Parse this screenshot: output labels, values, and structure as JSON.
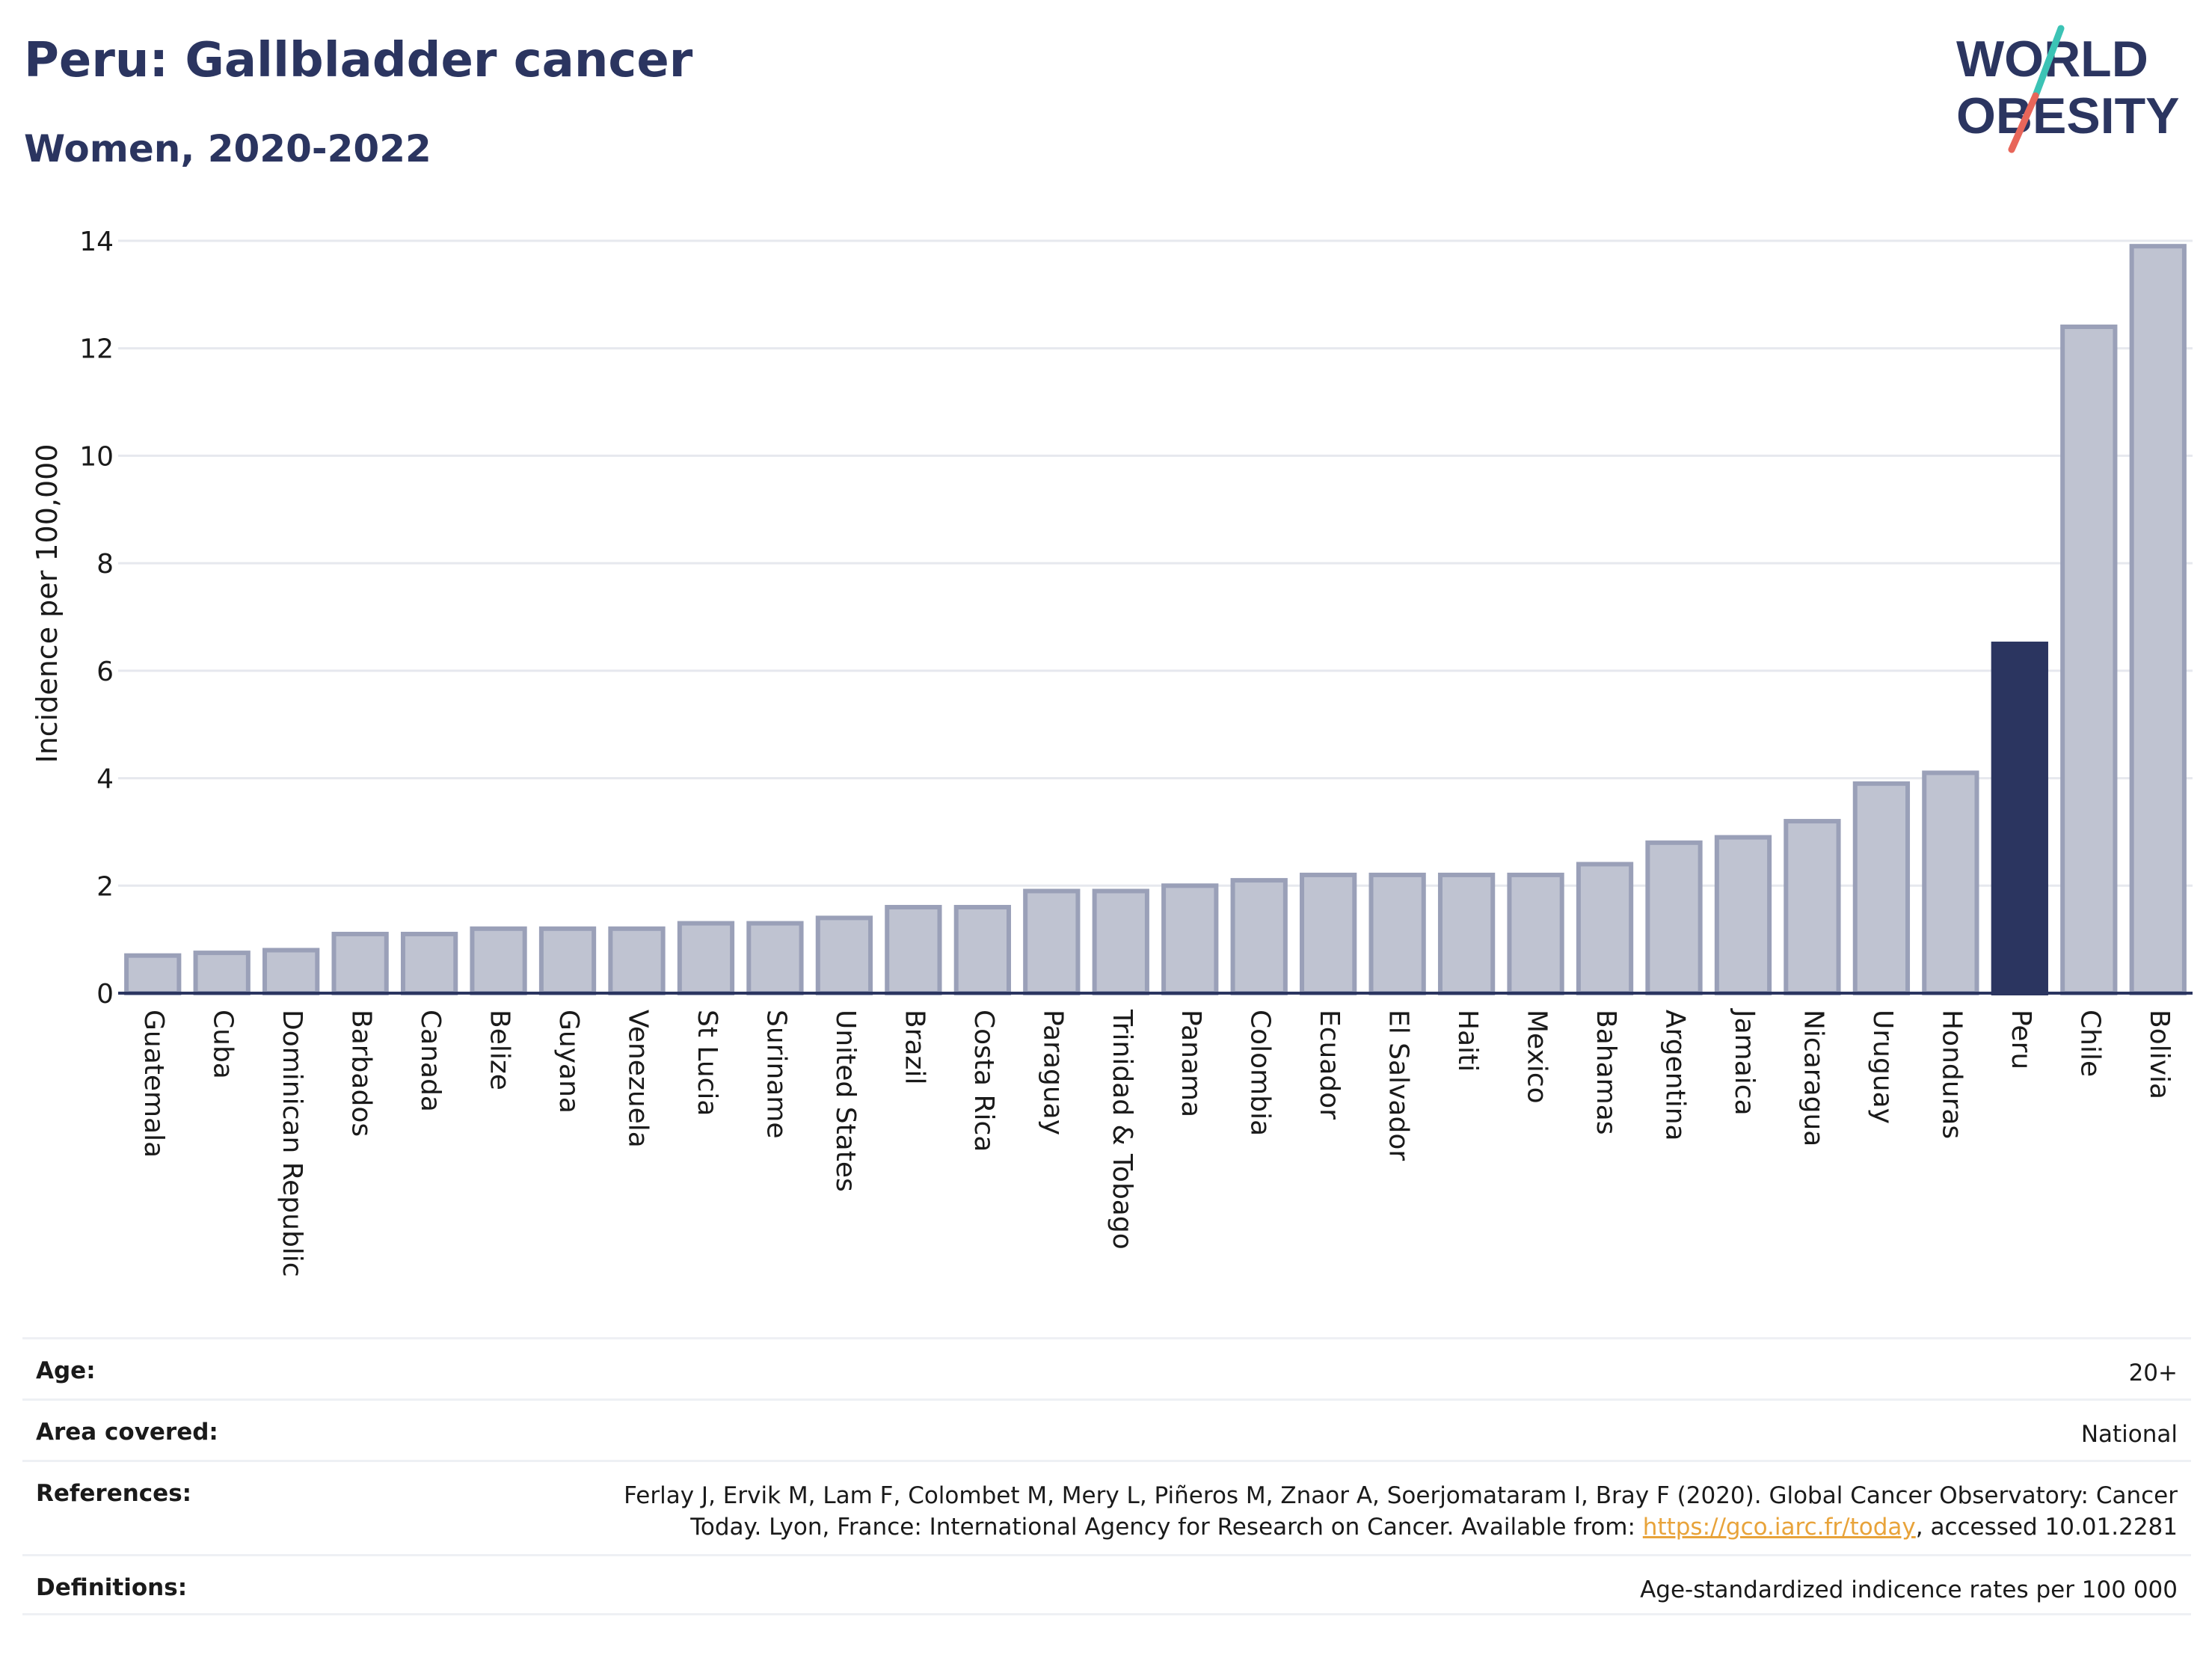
{
  "header": {
    "title": "Peru: Gallbladder cancer",
    "subtitle": "Women, 2020-2022"
  },
  "logo": {
    "line1": "WORLD",
    "line2": "OBESITY",
    "text_color": "#2b3560",
    "slash_colors": [
      "#3cc3b5",
      "#e8665a"
    ]
  },
  "colors": {
    "bar_default": "#bfc3d1",
    "bar_default_stroke": "#9aa0b8",
    "bar_highlight": "#2b3560",
    "grid": "#e6e8ee",
    "axis": "#2b3560",
    "text": "#1a1a1a"
  },
  "chart_data": {
    "type": "bar",
    "title": "Peru: Gallbladder cancer",
    "subtitle": "Women, 2020-2022",
    "xlabel": "",
    "ylabel": "Incidence per 100,000",
    "ylim": [
      0,
      14
    ],
    "yticks": [
      0,
      2,
      4,
      6,
      8,
      10,
      12,
      14
    ],
    "grid": true,
    "highlight": "Peru",
    "categories": [
      "Guatemala",
      "Cuba",
      "Dominican Republic",
      "Barbados",
      "Canada",
      "Belize",
      "Guyana",
      "Venezuela",
      "St Lucia",
      "Suriname",
      "United States",
      "Brazil",
      "Costa Rica",
      "Paraguay",
      "Trinidad & Tobago",
      "Panama",
      "Colombia",
      "Ecuador",
      "El Salvador",
      "Haiti",
      "Mexico",
      "Bahamas",
      "Argentina",
      "Jamaica",
      "Nicaragua",
      "Uruguay",
      "Honduras",
      "Peru",
      "Chile",
      "Bolivia"
    ],
    "values": [
      0.7,
      0.75,
      0.8,
      1.1,
      1.1,
      1.2,
      1.2,
      1.2,
      1.3,
      1.3,
      1.4,
      1.6,
      1.6,
      1.9,
      1.9,
      2.0,
      2.1,
      2.2,
      2.2,
      2.2,
      2.2,
      2.4,
      2.8,
      2.9,
      3.2,
      3.9,
      4.1,
      6.5,
      12.4,
      13.9
    ]
  },
  "meta": {
    "age_label": "Age:",
    "age_value": "20+",
    "area_label": "Area covered:",
    "area_value": "National",
    "references_label": "References:",
    "references_text_1": "Ferlay J, Ervik M, Lam F, Colombet M, Mery L, Piñeros M, Znaor A, Soerjomataram I, Bray F (2020). Global Cancer Observatory: Cancer",
    "references_text_2": "Today. Lyon, France: International Agency for Research on Cancer. Available from: ",
    "references_link": "https://gco.iarc.fr/today",
    "references_text_3": ", accessed 10.01.2281",
    "definitions_label": "Definitions:",
    "definitions_value": "Age-standardized indicence rates per 100 000"
  }
}
